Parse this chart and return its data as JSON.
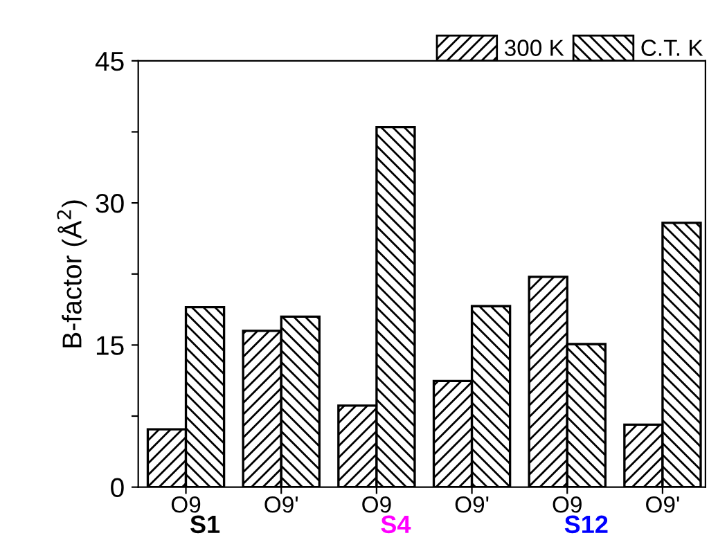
{
  "chart_data": {
    "type": "bar",
    "ylabel": "B-factor (Å$^{2}$)",
    "categories": [
      "O9",
      "O9'",
      "O9",
      "O9'",
      "O9",
      "O9'"
    ],
    "series": [
      {
        "name": "300 K",
        "color": "#000000",
        "values": [
          6.1,
          16.5,
          8.6,
          11.2,
          22.2,
          6.6
        ]
      },
      {
        "name": "C.T. K",
        "color": "#000000",
        "values": [
          19.0,
          18.0,
          38.0,
          19.1,
          15.1,
          27.9
        ]
      }
    ],
    "ylim": [
      0,
      45
    ],
    "yticks": [
      0,
      {
        "value": 7.5,
        "label": null
      },
      15,
      {
        "value": 22.5,
        "label": null
      },
      30,
      {
        "value": 37.5,
        "label": null
      },
      45
    ],
    "annotations": [
      "S1",
      "S4",
      "S12"
    ],
    "legend": "top right",
    "grid": false
  }
}
